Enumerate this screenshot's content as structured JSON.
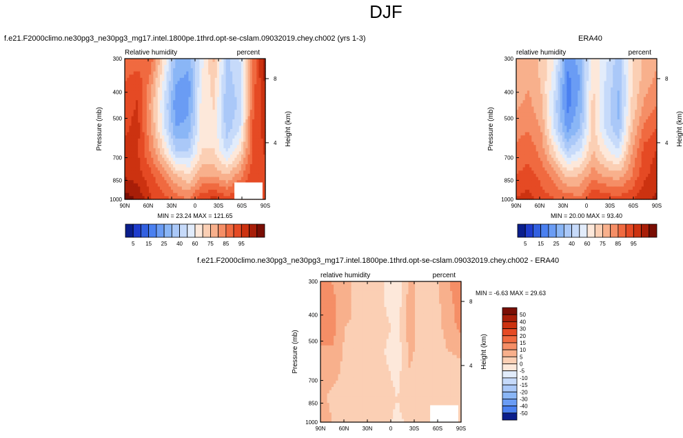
{
  "page": {
    "title": "DJF",
    "colors": {
      "background": "#ffffff",
      "axis": "#000000"
    }
  },
  "chart_data": [
    {
      "id": "model",
      "type": "heatmap",
      "title": "f.e21.F2000climo.ne30pg3_ne30pg3_mg17.intel.1800pe.1thrd.opt-se-cslam.09032019.chey.ch002 (yrs 1-3)",
      "left_label": "Relative humidity",
      "right_label": "percent",
      "ylabel": "Pressure (mb)",
      "y2label": "Height (km)",
      "x_ticks": [
        "90N",
        "60N",
        "30N",
        "0",
        "30S",
        "60S",
        "90S"
      ],
      "y_ticks": [
        "300",
        "400",
        "500",
        "700",
        "850",
        "1000"
      ],
      "y2_ticks": [
        "8",
        "4"
      ],
      "ylim": [
        1000,
        300
      ],
      "stats": "MIN = 23.24  MAX = 121.65",
      "colorbar": {
        "orientation": "horizontal",
        "labels": [
          "5",
          "15",
          "25",
          "40",
          "60",
          "75",
          "85",
          "95"
        ],
        "colors": [
          "#0a1e8c",
          "#1e3ccc",
          "#3260e0",
          "#4a80f0",
          "#6a9cf4",
          "#8ab6f6",
          "#aac8f8",
          "#c6dafa",
          "#e2ecfb",
          "#fde8da",
          "#fbcfb4",
          "#f8b08c",
          "#f58e66",
          "#f06a40",
          "#e54a24",
          "#cc3210",
          "#a81e08",
          "#7a0e04"
        ]
      },
      "field": [
        [
          72,
          74,
          76,
          56,
          32,
          30,
          48,
          62,
          38,
          44,
          72,
          94
        ],
        [
          78,
          82,
          70,
          50,
          28,
          26,
          50,
          58,
          36,
          42,
          74,
          90
        ],
        [
          80,
          84,
          66,
          46,
          24,
          26,
          52,
          56,
          34,
          40,
          76,
          88
        ],
        [
          82,
          86,
          68,
          48,
          28,
          30,
          52,
          54,
          36,
          44,
          78,
          86
        ],
        [
          86,
          84,
          72,
          58,
          40,
          40,
          56,
          56,
          44,
          56,
          78,
          84
        ],
        [
          88,
          86,
          80,
          72,
          62,
          56,
          66,
          66,
          62,
          70,
          82,
          82
        ],
        [
          98,
          94,
          84,
          80,
          76,
          72,
          82,
          86,
          80,
          84,
          86,
          80
        ]
      ],
      "blank_corner": true
    },
    {
      "id": "obs",
      "type": "heatmap",
      "title": "ERA40",
      "left_label": "relative humidity",
      "right_label": "percent",
      "ylabel": "Pressure (mb)",
      "y2label": "Height (km)",
      "x_ticks": [
        "90N",
        "60N",
        "30N",
        "0",
        "30S",
        "60S",
        "90S"
      ],
      "y_ticks": [
        "300",
        "400",
        "500",
        "700",
        "850",
        "1000"
      ],
      "y2_ticks": [
        "8",
        "4"
      ],
      "ylim": [
        1000,
        300
      ],
      "stats": "MIN = 20.00  MAX = 93.40",
      "colorbar": {
        "orientation": "horizontal",
        "labels": [
          "5",
          "15",
          "25",
          "40",
          "60",
          "75",
          "85",
          "95"
        ],
        "colors": [
          "#0a1e8c",
          "#1e3ccc",
          "#3260e0",
          "#4a80f0",
          "#6a9cf4",
          "#8ab6f6",
          "#aac8f8",
          "#c6dafa",
          "#e2ecfb",
          "#fde8da",
          "#fbcfb4",
          "#f8b08c",
          "#f58e66",
          "#f06a40",
          "#e54a24",
          "#cc3210",
          "#a81e08",
          "#7a0e04"
        ]
      },
      "field": [
        [
          62,
          64,
          60,
          50,
          24,
          30,
          54,
          46,
          36,
          54,
          62,
          66
        ],
        [
          64,
          66,
          60,
          46,
          20,
          28,
          56,
          44,
          34,
          54,
          64,
          68
        ],
        [
          66,
          68,
          62,
          42,
          20,
          30,
          58,
          42,
          32,
          56,
          68,
          72
        ],
        [
          70,
          72,
          66,
          44,
          26,
          34,
          58,
          44,
          34,
          60,
          74,
          78
        ],
        [
          74,
          76,
          70,
          56,
          40,
          46,
          62,
          52,
          46,
          66,
          80,
          84
        ],
        [
          78,
          80,
          76,
          70,
          60,
          62,
          70,
          66,
          64,
          72,
          82,
          86
        ],
        [
          84,
          86,
          80,
          78,
          76,
          74,
          84,
          82,
          80,
          82,
          88,
          90
        ]
      ],
      "blank_corner": false
    },
    {
      "id": "diff",
      "type": "heatmap",
      "title": "f.e21.F2000climo.ne30pg3_ne30pg3_mg17.intel.1800pe.1thrd.opt-se-cslam.09032019.chey.ch002 - ERA40",
      "left_label": "relative humidity",
      "right_label": "percent",
      "ylabel": "Pressure (mb)",
      "y2label": "Height (km)",
      "x_ticks": [
        "90N",
        "60N",
        "30N",
        "0",
        "30S",
        "60S",
        "90S"
      ],
      "y_ticks": [
        "300",
        "400",
        "500",
        "700",
        "850",
        "1000"
      ],
      "y2_ticks": [
        "8",
        "4"
      ],
      "ylim": [
        1000,
        300
      ],
      "stats": "MIN = -6.63  MAX = 29.63",
      "colorbar": {
        "orientation": "vertical",
        "labels": [
          "50",
          "40",
          "30",
          "20",
          "15",
          "10",
          "5",
          "0",
          "-5",
          "-10",
          "-15",
          "-20",
          "-30",
          "-40",
          "-50"
        ],
        "colors": [
          "#7a0e04",
          "#a81e08",
          "#cc3210",
          "#e54a24",
          "#f06a40",
          "#f58e66",
          "#f8b08c",
          "#fbcfb4",
          "#fde8da",
          "#e2ecfb",
          "#c6dafa",
          "#aac8f8",
          "#8ab6f6",
          "#6a9cf4",
          "#4a80f0",
          "#0a1e8c"
        ]
      },
      "field": [
        [
          14,
          12,
          8,
          4,
          6,
          0,
          -4,
          8,
          2,
          4,
          12,
          18
        ],
        [
          16,
          14,
          8,
          4,
          6,
          0,
          -4,
          10,
          2,
          4,
          10,
          16
        ],
        [
          14,
          14,
          6,
          6,
          4,
          2,
          -2,
          10,
          2,
          2,
          10,
          14
        ],
        [
          12,
          12,
          4,
          6,
          4,
          0,
          -4,
          8,
          2,
          2,
          6,
          8
        ],
        [
          10,
          8,
          4,
          4,
          2,
          2,
          -2,
          6,
          0,
          4,
          2,
          2
        ],
        [
          8,
          4,
          2,
          6,
          2,
          4,
          0,
          4,
          2,
          6,
          4,
          0
        ],
        [
          12,
          6,
          4,
          2,
          0,
          2,
          -2,
          2,
          4,
          4,
          2,
          0
        ]
      ],
      "blank_corner": true
    }
  ]
}
